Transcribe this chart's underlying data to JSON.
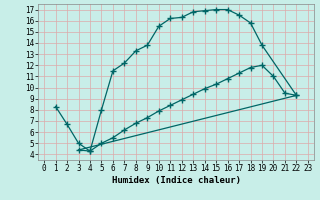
{
  "xlabel": "Humidex (Indice chaleur)",
  "bg_color": "#c8eee8",
  "line_color": "#006666",
  "grid_color": "#aaddcc",
  "line1_x": [
    1,
    2,
    3,
    4,
    5,
    6,
    7,
    8,
    9,
    10,
    11,
    12,
    13,
    14,
    15,
    16,
    17,
    18,
    19,
    22
  ],
  "line1_y": [
    8.3,
    6.7,
    5.0,
    4.3,
    8.0,
    11.5,
    12.2,
    13.3,
    13.8,
    15.5,
    16.2,
    16.3,
    16.8,
    16.9,
    17.0,
    17.0,
    16.5,
    15.8,
    13.8,
    9.3
  ],
  "line2_x": [
    3,
    4,
    5,
    6,
    7,
    8,
    9,
    10,
    11,
    12,
    13,
    14,
    15,
    16,
    17,
    18,
    19,
    20,
    21,
    22
  ],
  "line2_y": [
    4.4,
    4.3,
    5.0,
    5.5,
    6.2,
    6.8,
    7.3,
    7.9,
    8.4,
    8.9,
    9.4,
    9.9,
    10.3,
    10.8,
    11.3,
    11.8,
    12.0,
    11.0,
    9.5,
    9.3
  ],
  "line3_x": [
    3,
    22
  ],
  "line3_y": [
    4.4,
    9.3
  ],
  "xlim": [
    -0.5,
    23.5
  ],
  "ylim": [
    3.5,
    17.5
  ],
  "yticks": [
    4,
    5,
    6,
    7,
    8,
    9,
    10,
    11,
    12,
    13,
    14,
    15,
    16,
    17
  ],
  "xticks": [
    0,
    1,
    2,
    3,
    4,
    5,
    6,
    7,
    8,
    9,
    10,
    11,
    12,
    13,
    14,
    15,
    16,
    17,
    18,
    19,
    20,
    21,
    22,
    23
  ]
}
